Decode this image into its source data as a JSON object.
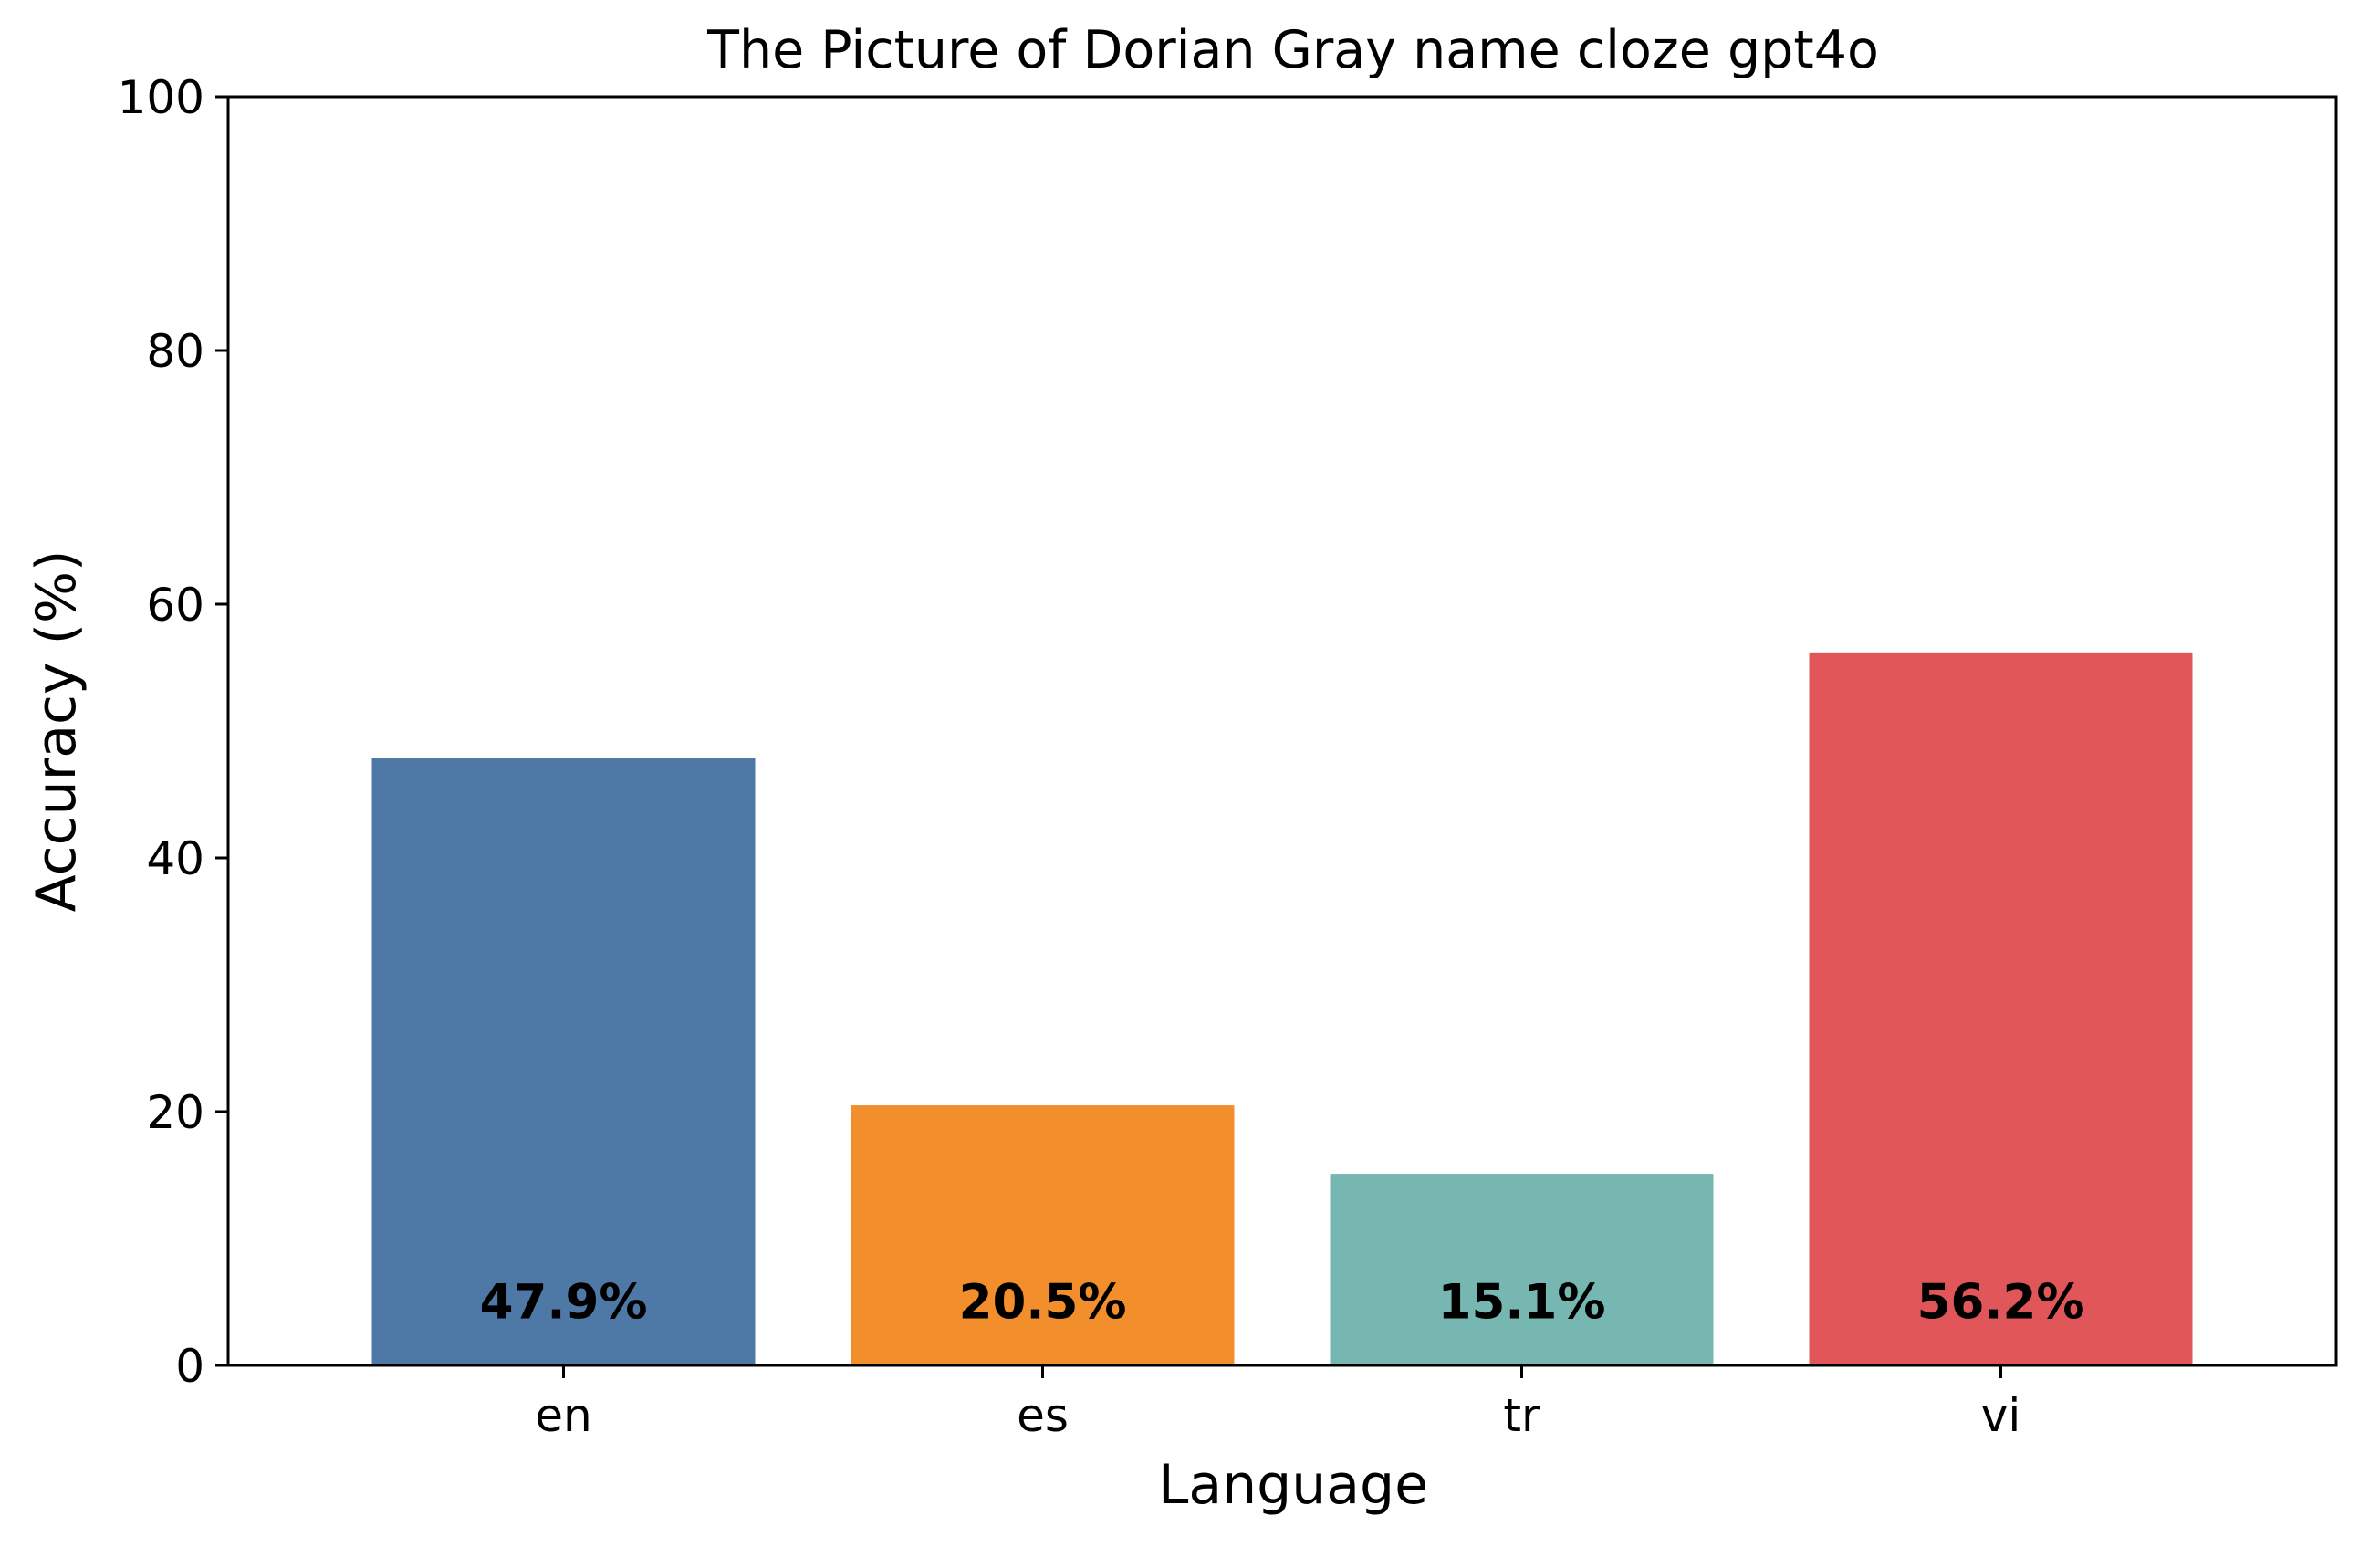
{
  "chart_data": {
    "type": "bar",
    "title": "The Picture of Dorian Gray name cloze gpt4o",
    "xlabel": "Language",
    "ylabel": "Accuracy (%)",
    "categories": [
      "en",
      "es",
      "tr",
      "vi"
    ],
    "values": [
      47.9,
      20.5,
      15.1,
      56.2
    ],
    "data_labels": [
      "47.9%",
      "20.5%",
      "15.1%",
      "56.2%"
    ],
    "colors": [
      "#4e79a7",
      "#f28e2b",
      "#76b7b2",
      "#e15759"
    ],
    "ylim": [
      0,
      100
    ],
    "yticks": [
      0,
      20,
      40,
      60,
      80,
      100
    ],
    "grid": false,
    "legend": "none"
  }
}
